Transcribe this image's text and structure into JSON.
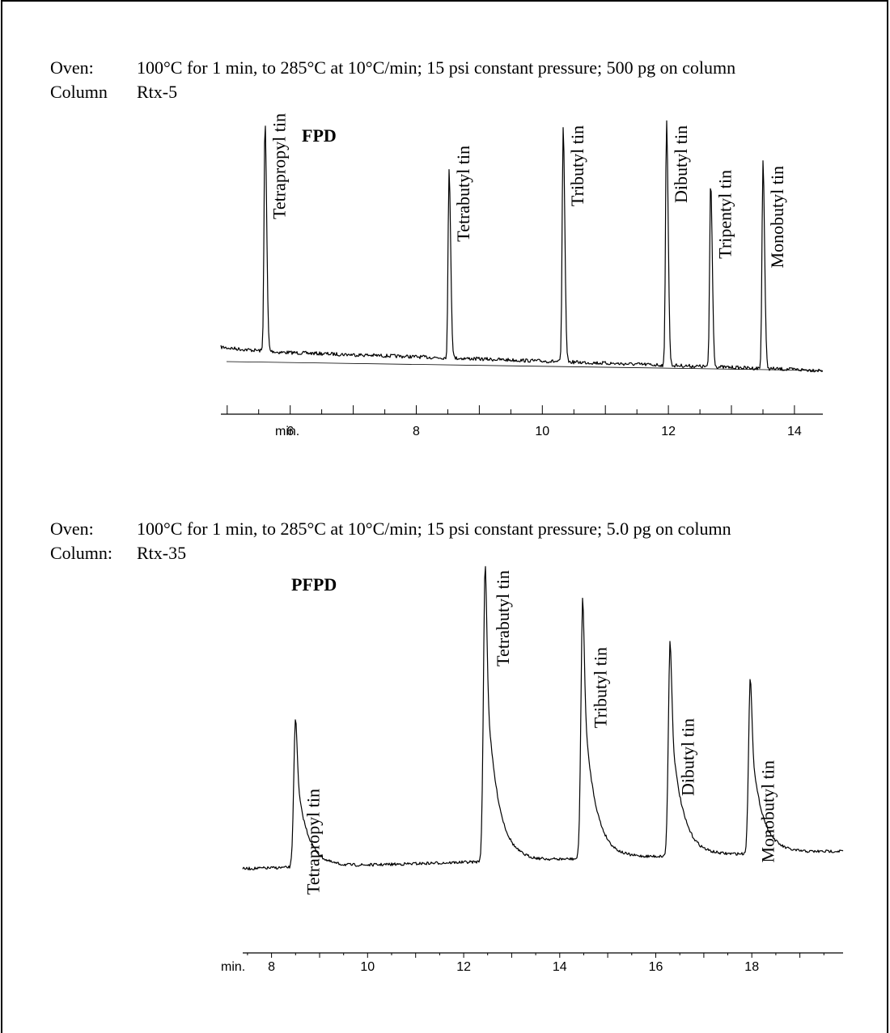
{
  "chart_data": [
    {
      "type": "line",
      "detector": "FPD",
      "conditions": [
        {
          "label": "Oven:",
          "value": "100°C for 1 min, to 285°C at 10°C/min; 15 psi constant pressure; 500 pg on column"
        },
        {
          "label": "Column",
          "value": "Rtx-5"
        }
      ],
      "xlabel_prefix": "min.",
      "x_range": [
        4.9,
        14.45
      ],
      "x_ticks": [
        6,
        8,
        10,
        12,
        14
      ],
      "peaks": [
        {
          "name": "Tetrapropyl tin",
          "rt": 5.6,
          "height": 0.93
        },
        {
          "name": "Tetrabutyl tin",
          "rt": 8.52,
          "height": 0.76
        },
        {
          "name": "Tributyl tin",
          "rt": 10.33,
          "height": 0.95
        },
        {
          "name": "Dibutyl tin",
          "rt": 11.97,
          "height": 1.0
        },
        {
          "name": "Tripentyl tin",
          "rt": 12.67,
          "height": 0.75
        },
        {
          "name": "Monobutyl tin",
          "rt": 13.5,
          "height": 0.84
        }
      ]
    },
    {
      "type": "line",
      "detector": "PFPD",
      "conditions": [
        {
          "label": "Oven:",
          "value": "100°C for 1 min, to 285°C at 10°C/min; 15 psi constant pressure; 5.0 pg on column"
        },
        {
          "label": "Column:",
          "value": "Rtx-35"
        }
      ],
      "xlabel_prefix": "min.",
      "x_range": [
        7.4,
        19.9
      ],
      "x_ticks": [
        8,
        10,
        12,
        14,
        16,
        18
      ],
      "peaks": [
        {
          "name": "Tetrapropyl tin",
          "rt": 8.5,
          "height": 0.5
        },
        {
          "name": "Tetrabutyl tin",
          "rt": 12.45,
          "height": 1.0
        },
        {
          "name": "Tributyl tin",
          "rt": 14.48,
          "height": 0.87
        },
        {
          "name": "Dibutyl tin",
          "rt": 16.3,
          "height": 0.72
        },
        {
          "name": "Monobutyl tin",
          "rt": 17.97,
          "height": 0.59
        }
      ]
    }
  ]
}
